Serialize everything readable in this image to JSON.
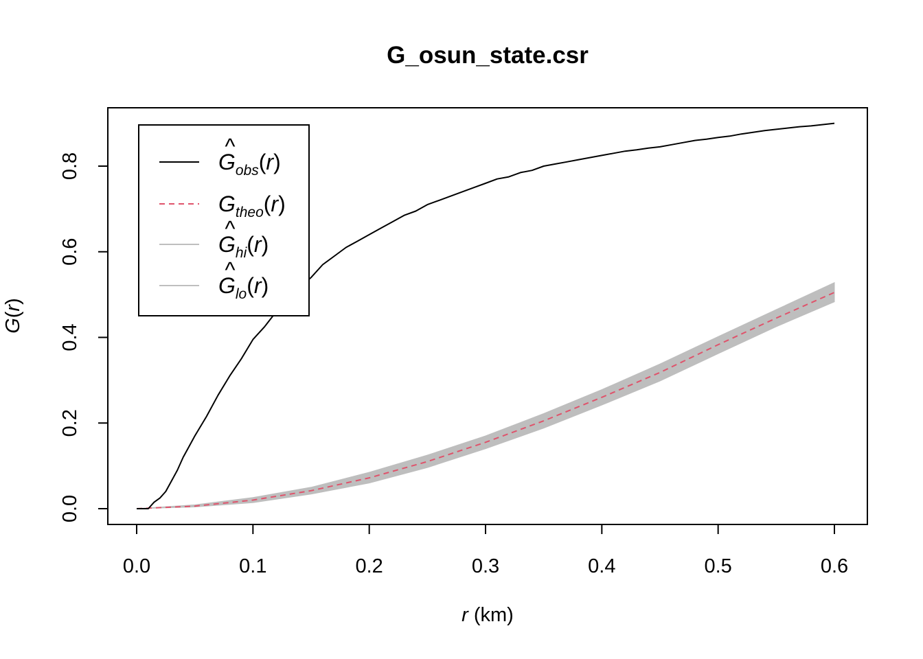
{
  "chart_data": {
    "type": "line",
    "title": "G_osun_state.csr",
    "xlabel": {
      "var": "r",
      "unit": " (km)"
    },
    "ylabel": {
      "fn": "G",
      "arg": "r"
    },
    "xlim": [
      0.0,
      0.6
    ],
    "ylim": [
      0.0,
      0.9
    ],
    "xticks": [
      "0.0",
      "0.1",
      "0.2",
      "0.3",
      "0.4",
      "0.5",
      "0.6"
    ],
    "yticks": [
      "0.0",
      "0.2",
      "0.4",
      "0.6",
      "0.8"
    ],
    "legend_position": "top-left",
    "colors": {
      "obs": "#000000",
      "theo": "#DF536B",
      "envelope": "#BEBEBE"
    },
    "series": [
      {
        "name": "obs",
        "legend": {
          "main": "G",
          "hat": true,
          "sub": "obs",
          "arg": "r"
        },
        "style": "solid",
        "x": [
          0.0,
          0.01,
          0.015,
          0.02,
          0.025,
          0.03,
          0.035,
          0.04,
          0.045,
          0.05,
          0.06,
          0.07,
          0.08,
          0.09,
          0.1,
          0.11,
          0.12,
          0.13,
          0.14,
          0.15,
          0.16,
          0.17,
          0.18,
          0.19,
          0.2,
          0.21,
          0.22,
          0.23,
          0.24,
          0.25,
          0.26,
          0.27,
          0.28,
          0.29,
          0.3,
          0.31,
          0.32,
          0.33,
          0.34,
          0.35,
          0.36,
          0.37,
          0.38,
          0.39,
          0.4,
          0.41,
          0.42,
          0.43,
          0.44,
          0.45,
          0.46,
          0.47,
          0.48,
          0.49,
          0.5,
          0.51,
          0.52,
          0.53,
          0.54,
          0.55,
          0.56,
          0.57,
          0.58,
          0.59,
          0.6
        ],
        "y": [
          0.0,
          0.0,
          0.015,
          0.025,
          0.04,
          0.065,
          0.09,
          0.12,
          0.145,
          0.17,
          0.215,
          0.265,
          0.31,
          0.35,
          0.395,
          0.425,
          0.46,
          0.49,
          0.515,
          0.54,
          0.57,
          0.59,
          0.61,
          0.625,
          0.64,
          0.655,
          0.67,
          0.685,
          0.695,
          0.71,
          0.72,
          0.73,
          0.74,
          0.75,
          0.76,
          0.77,
          0.775,
          0.785,
          0.79,
          0.8,
          0.805,
          0.81,
          0.815,
          0.82,
          0.825,
          0.83,
          0.835,
          0.838,
          0.842,
          0.845,
          0.85,
          0.855,
          0.86,
          0.863,
          0.867,
          0.87,
          0.875,
          0.879,
          0.883,
          0.886,
          0.889,
          0.892,
          0.894,
          0.897,
          0.9
        ]
      },
      {
        "name": "theo",
        "legend": {
          "main": "G",
          "hat": false,
          "sub": "theo",
          "arg": "r"
        },
        "style": "dashed",
        "x": [
          0.0,
          0.05,
          0.1,
          0.15,
          0.2,
          0.25,
          0.3,
          0.35,
          0.4,
          0.45,
          0.5,
          0.55,
          0.6
        ],
        "y": [
          0.0,
          0.006,
          0.02,
          0.042,
          0.072,
          0.11,
          0.155,
          0.205,
          0.26,
          0.318,
          0.383,
          0.445,
          0.505
        ]
      },
      {
        "name": "hi",
        "legend": {
          "main": "G",
          "hat": true,
          "sub": "hi",
          "arg": "r"
        },
        "style": "envelope-upper",
        "x": [
          0.0,
          0.05,
          0.1,
          0.15,
          0.2,
          0.25,
          0.3,
          0.35,
          0.4,
          0.45,
          0.5,
          0.55,
          0.6
        ],
        "y": [
          0.0,
          0.009,
          0.026,
          0.05,
          0.085,
          0.125,
          0.17,
          0.222,
          0.278,
          0.338,
          0.402,
          0.465,
          0.528
        ]
      },
      {
        "name": "lo",
        "legend": {
          "main": "G",
          "hat": true,
          "sub": "lo",
          "arg": "r"
        },
        "style": "envelope-lower",
        "x": [
          0.0,
          0.05,
          0.1,
          0.15,
          0.2,
          0.25,
          0.3,
          0.35,
          0.4,
          0.45,
          0.5,
          0.55,
          0.6
        ],
        "y": [
          0.0,
          0.004,
          0.014,
          0.034,
          0.06,
          0.096,
          0.14,
          0.188,
          0.242,
          0.298,
          0.362,
          0.425,
          0.483
        ]
      }
    ]
  }
}
